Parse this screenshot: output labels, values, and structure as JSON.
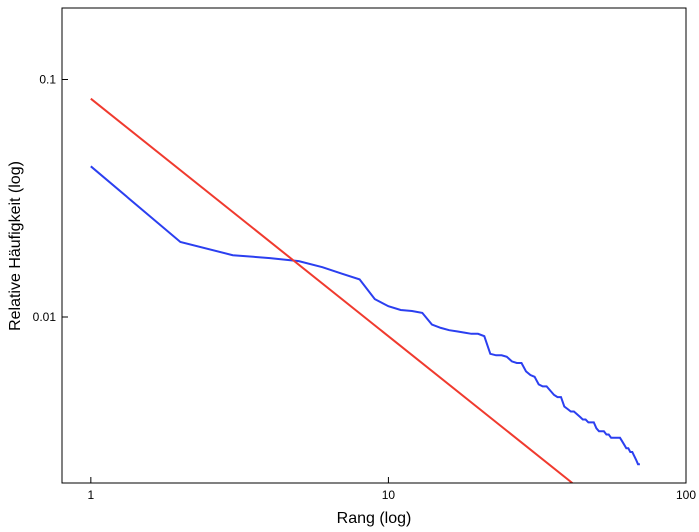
{
  "chart_data": {
    "type": "line",
    "x_label": "Rang (log)",
    "y_label": "Relative Häufigkeit (log)",
    "xscale": "log",
    "yscale": "log",
    "xlim": [
      0.8,
      100
    ],
    "ylim": [
      0.002,
      0.2
    ],
    "xticks": [
      1,
      10,
      100
    ],
    "yticks": [
      0.01,
      0.1
    ],
    "series": [
      {
        "color": "#2b3ff0",
        "x": [
          1,
          2,
          3,
          4,
          5,
          6,
          7,
          8,
          9,
          10,
          11,
          12,
          13,
          14,
          15,
          16,
          17,
          18,
          19,
          20,
          21,
          22,
          23,
          24,
          25,
          26,
          27,
          28,
          29,
          30,
          31,
          32,
          33,
          34,
          35,
          36,
          37,
          38,
          39,
          40,
          41,
          42,
          43,
          44,
          45,
          46,
          47,
          48,
          49,
          50,
          51,
          52,
          53,
          54,
          55,
          56,
          57,
          58,
          59,
          60,
          61,
          62,
          63,
          64,
          65,
          66,
          67,
          68,
          69,
          70
        ],
        "values": [
          0.0431,
          0.0207,
          0.0182,
          0.0177,
          0.0172,
          0.0162,
          0.0152,
          0.0144,
          0.0119,
          0.0111,
          0.0107,
          0.0106,
          0.0104,
          0.0093,
          0.009,
          0.0088,
          0.0087,
          0.0086,
          0.0085,
          0.0085,
          0.0083,
          0.007,
          0.0069,
          0.0069,
          0.0068,
          0.0065,
          0.0064,
          0.0064,
          0.0059,
          0.0057,
          0.0056,
          0.0052,
          0.0051,
          0.0051,
          0.0049,
          0.0047,
          0.0046,
          0.0046,
          0.0042,
          0.0041,
          0.004,
          0.004,
          0.0039,
          0.0038,
          0.0037,
          0.0037,
          0.0036,
          0.0036,
          0.0036,
          0.0034,
          0.0033,
          0.0033,
          0.0033,
          0.0032,
          0.0032,
          0.0031,
          0.0031,
          0.0031,
          0.0031,
          0.0031,
          0.003,
          0.0029,
          0.0028,
          0.0028,
          0.0027,
          0.0027,
          0.0026,
          0.0025,
          0.0024,
          0.0024
        ]
      },
      {
        "color": "#f03a2e",
        "x": [
          1,
          41.5
        ],
        "values": [
          0.083,
          0.002
        ]
      }
    ]
  }
}
